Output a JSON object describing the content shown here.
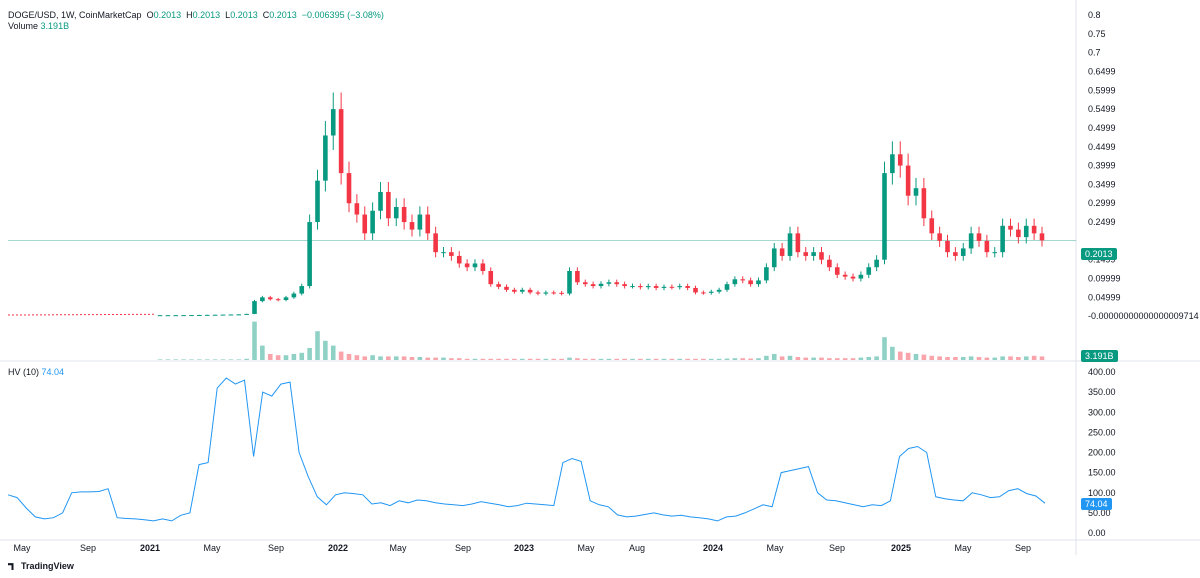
{
  "header": {
    "symbol": "DOGE/USD, 1W, CoinMarketCap",
    "o_label": "O",
    "o_value": "0.2013",
    "h_label": "H",
    "h_value": "0.2013",
    "l_label": "L",
    "l_value": "0.2013",
    "c_label": "C",
    "c_value": "0.2013",
    "change": "−0.006395 (−3.08%)",
    "volume_label": "Volume",
    "volume_value": "3.191B",
    "hv_label": "HV (10)",
    "hv_value": "74.04"
  },
  "badges": {
    "price": "0.2013",
    "volume": "3.191B",
    "hv": "74.04"
  },
  "footer": {
    "brand": "TradingView"
  },
  "colors": {
    "up": "#089981",
    "down": "#f23645",
    "hv_line": "#2962ff",
    "hv_badge": "#2196f3",
    "grid": "#e0e3eb"
  },
  "chart_data": [
    {
      "type": "candlestick",
      "title": "DOGE/USD, 1W, CoinMarketCap",
      "x_tick_labels": [
        "May",
        "Sep",
        "2021",
        "May",
        "Sep",
        "2022",
        "May",
        "Sep",
        "2023",
        "May",
        "Aug",
        "2024",
        "May",
        "Sep",
        "2025",
        "May",
        "Sep"
      ],
      "y_tick_labels": [
        "0.8",
        "0.75",
        "0.7",
        "0.6499",
        "0.5999",
        "0.5499",
        "0.4999",
        "0.4499",
        "0.3999",
        "0.3499",
        "0.2999",
        "0.2499",
        "0.1499",
        "0.09999",
        "0.04999",
        "-0.00000000000000009714"
      ],
      "ylim": [
        -0.05,
        0.8
      ],
      "last_price": 0.2013,
      "close_series": [
        0.0026,
        0.0026,
        0.0027,
        0.0028,
        0.003,
        0.0032,
        0.0035,
        0.0038,
        0.0042,
        0.0045,
        0.0048,
        0.006,
        0.04,
        0.05,
        0.045,
        0.043,
        0.05,
        0.06,
        0.08,
        0.25,
        0.36,
        0.48,
        0.55,
        0.38,
        0.3,
        0.27,
        0.22,
        0.28,
        0.33,
        0.26,
        0.29,
        0.25,
        0.23,
        0.27,
        0.22,
        0.17,
        0.17,
        0.16,
        0.14,
        0.13,
        0.14,
        0.12,
        0.085,
        0.078,
        0.07,
        0.065,
        0.07,
        0.063,
        0.06,
        0.063,
        0.062,
        0.06,
        0.12,
        0.09,
        0.085,
        0.08,
        0.086,
        0.09,
        0.085,
        0.08,
        0.08,
        0.077,
        0.08,
        0.075,
        0.078,
        0.077,
        0.08,
        0.075,
        0.063,
        0.062,
        0.065,
        0.07,
        0.085,
        0.098,
        0.095,
        0.085,
        0.095,
        0.13,
        0.18,
        0.16,
        0.22,
        0.17,
        0.16,
        0.17,
        0.15,
        0.13,
        0.11,
        0.105,
        0.1,
        0.11,
        0.13,
        0.15,
        0.38,
        0.43,
        0.4,
        0.32,
        0.34,
        0.26,
        0.22,
        0.2,
        0.17,
        0.16,
        0.18,
        0.22,
        0.2,
        0.17,
        0.17,
        0.24,
        0.23,
        0.21,
        0.24,
        0.22,
        0.2013
      ],
      "volume_series": [
        0.05,
        0.05,
        0.05,
        0.05,
        0.05,
        0.05,
        0.05,
        0.05,
        0.05,
        0.05,
        0.05,
        0.1,
        3.2,
        1.2,
        0.5,
        0.4,
        0.4,
        0.5,
        0.6,
        1.0,
        2.4,
        1.6,
        1.2,
        0.7,
        0.5,
        0.4,
        0.3,
        0.4,
        0.3,
        0.3,
        0.3,
        0.3,
        0.25,
        0.25,
        0.2,
        0.2,
        0.2,
        0.15,
        0.15,
        0.1,
        0.1,
        0.1,
        0.1,
        0.1,
        0.1,
        0.1,
        0.1,
        0.1,
        0.1,
        0.1,
        0.1,
        0.1,
        0.2,
        0.15,
        0.1,
        0.1,
        0.1,
        0.1,
        0.1,
        0.1,
        0.1,
        0.1,
        0.1,
        0.1,
        0.1,
        0.1,
        0.1,
        0.1,
        0.1,
        0.1,
        0.1,
        0.1,
        0.12,
        0.15,
        0.15,
        0.12,
        0.15,
        0.35,
        0.5,
        0.3,
        0.35,
        0.25,
        0.2,
        0.2,
        0.2,
        0.15,
        0.15,
        0.15,
        0.15,
        0.2,
        0.25,
        0.3,
        1.9,
        1.1,
        0.7,
        0.6,
        0.5,
        0.45,
        0.35,
        0.3,
        0.25,
        0.25,
        0.25,
        0.3,
        0.25,
        0.2,
        0.2,
        0.3,
        0.3,
        0.25,
        0.3,
        0.35,
        0.3
      ]
    },
    {
      "type": "line",
      "title": "HV (10)",
      "x_tick_labels": [
        "May",
        "Sep",
        "2021",
        "May",
        "Sep",
        "2022",
        "May",
        "Sep",
        "2023",
        "May",
        "Aug",
        "2024",
        "May",
        "Sep",
        "2025",
        "May",
        "Sep"
      ],
      "y_tick_labels": [
        "400.00",
        "350.00",
        "300.00",
        "250.00",
        "200.00",
        "150.00",
        "100.00",
        "50.00",
        "0.00"
      ],
      "ylim": [
        0,
        400
      ],
      "series": [
        {
          "values": [
            95,
            88,
            62,
            40,
            35,
            38,
            50,
            100,
            102,
            102,
            103,
            110,
            38,
            36,
            35,
            33,
            30,
            35,
            30,
            44,
            50,
            170,
            175,
            360,
            385,
            370,
            380,
            190,
            350,
            340,
            370,
            375,
            200,
            140,
            90,
            70,
            95,
            100,
            98,
            95,
            72,
            75,
            68,
            80,
            75,
            82,
            80,
            75,
            72,
            70,
            68,
            72,
            78,
            74,
            70,
            65,
            68,
            74,
            72,
            70,
            68,
            175,
            185,
            178,
            80,
            70,
            65,
            45,
            40,
            42,
            46,
            50,
            45,
            42,
            44,
            40,
            38,
            35,
            30,
            40,
            42,
            50,
            60,
            70,
            65,
            150,
            155,
            160,
            165,
            100,
            82,
            80,
            75,
            70,
            65,
            70,
            68,
            80,
            190,
            210,
            215,
            200,
            90,
            85,
            82,
            80,
            100,
            95,
            88,
            90,
            105,
            110,
            98,
            92,
            74.04
          ]
        }
      ]
    }
  ]
}
